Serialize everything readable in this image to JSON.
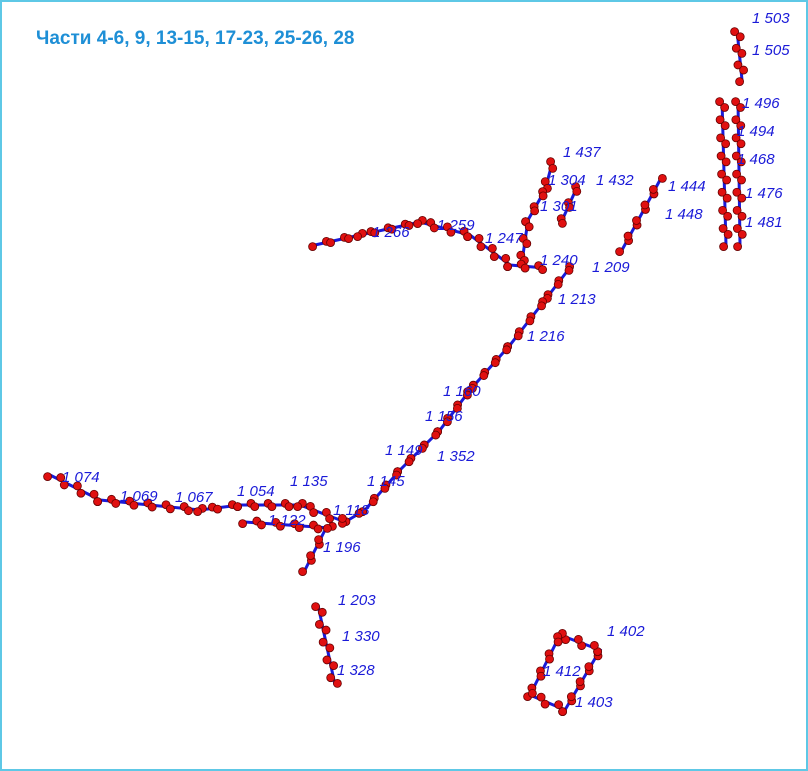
{
  "header": {
    "title": "Части 4-6, 9, 13-15, 17-23, 25-26, 28"
  },
  "labels": [
    "1 503",
    "1 505",
    "1 496",
    "1 494",
    "1 468",
    "1 476",
    "1 481",
    "1 437",
    "1 304",
    "1 432",
    "1 444",
    "1 448",
    "1 301",
    "1 266",
    "1 259",
    "1 247",
    "1 240",
    "1 209",
    "1 213",
    "1 216",
    "1 160",
    "1 156",
    "1 149",
    "1 352",
    "1 145",
    "1 074",
    "1 069",
    "1 067",
    "1 054",
    "1 135",
    "1 118",
    "1 122",
    "1 196",
    "1 203",
    "1 330",
    "1 328",
    "1 402",
    "1 412",
    "1 403"
  ]
}
